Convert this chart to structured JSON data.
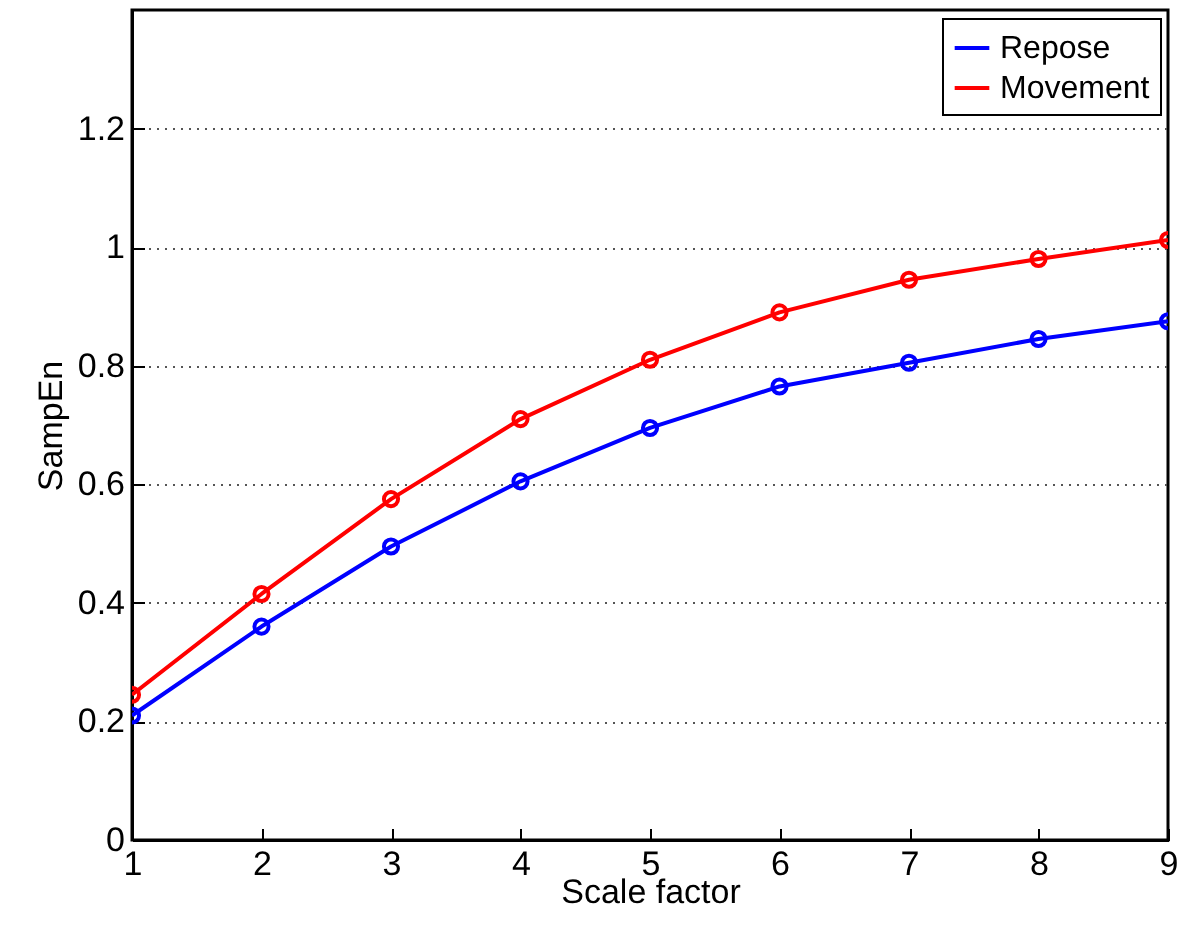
{
  "chart_data": {
    "type": "line",
    "xlabel": "Scale factor",
    "ylabel": "SampEn",
    "x": [
      1,
      2,
      3,
      4,
      5,
      6,
      7,
      8,
      9
    ],
    "series": [
      {
        "name": "Repose",
        "color": "#0000ff",
        "values": [
          0.21,
          0.36,
          0.495,
          0.605,
          0.695,
          0.765,
          0.805,
          0.845,
          0.875
        ]
      },
      {
        "name": "Movement",
        "color": "#ff0000",
        "values": [
          0.245,
          0.415,
          0.575,
          0.71,
          0.81,
          0.89,
          0.945,
          0.98,
          1.012
        ]
      }
    ],
    "xlim": [
      1,
      9
    ],
    "xticks": [
      1,
      2,
      3,
      4,
      5,
      6,
      7,
      8,
      9
    ],
    "ylim": [
      0,
      1.4
    ],
    "yticks": [
      0,
      0.2,
      0.4,
      0.6,
      0.8,
      1,
      1.2
    ],
    "grid": "y",
    "legend": "top right",
    "marker": "circle",
    "line_style": "solid"
  }
}
